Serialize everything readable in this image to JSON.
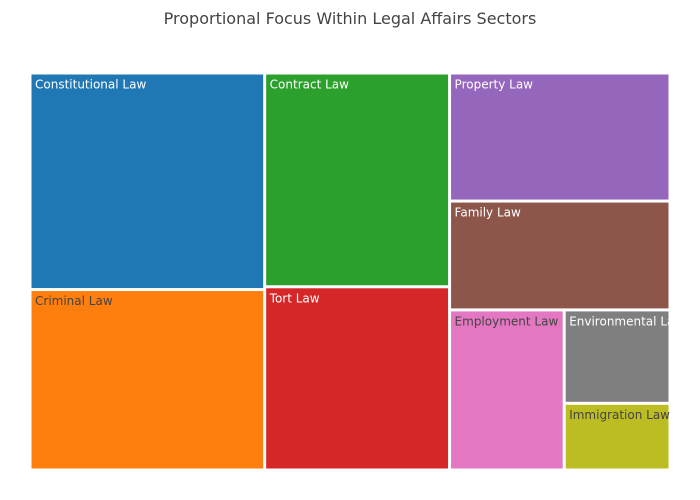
{
  "chart_data": {
    "type": "treemap",
    "title": "Proportional Focus Within Legal Affairs Sectors",
    "items": [
      {
        "label": "Constitutional Law",
        "value": 18,
        "color": "#1f77b4",
        "label_color": "#ffffff"
      },
      {
        "label": "Criminal Law",
        "value": 15,
        "color": "#ff7f0e",
        "label_color": "#444444"
      },
      {
        "label": "Contract Law",
        "value": 14,
        "color": "#2ca02c",
        "label_color": "#ffffff"
      },
      {
        "label": "Tort Law",
        "value": 12,
        "color": "#d62728",
        "label_color": "#ffffff"
      },
      {
        "label": "Property Law",
        "value": 10,
        "color": "#9467bd",
        "label_color": "#ffffff"
      },
      {
        "label": "Family Law",
        "value": 8.5,
        "color": "#8c564b",
        "label_color": "#ffffff"
      },
      {
        "label": "Employment Law",
        "value": 6.5,
        "color": "#e377c2",
        "label_color": "#444444"
      },
      {
        "label": "Environmental Law",
        "value": 3.5,
        "color": "#7f7f7f",
        "label_color": "#ffffff"
      },
      {
        "label": "Immigration Law",
        "value": 2.5,
        "color": "#bcbd22",
        "label_color": "#444444"
      }
    ]
  }
}
